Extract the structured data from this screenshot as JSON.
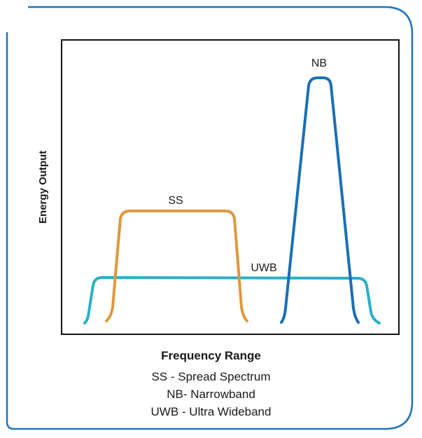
{
  "colors": {
    "frame": "#1f73b7",
    "axes": "#111111",
    "ss": "#e0973a",
    "nb": "#1b6fb6",
    "uwb": "#28b0c8"
  },
  "diagram": {
    "ylabel": "Energy Output",
    "curves": {
      "ss_label": "SS",
      "nb_label": "NB",
      "uwb_label": "UWB"
    }
  },
  "legend": {
    "title": "Frequency Range",
    "lines": [
      "SS - Spread Spectrum",
      "NB- Narrowband",
      "UWB - Ultra Wideband"
    ]
  }
}
